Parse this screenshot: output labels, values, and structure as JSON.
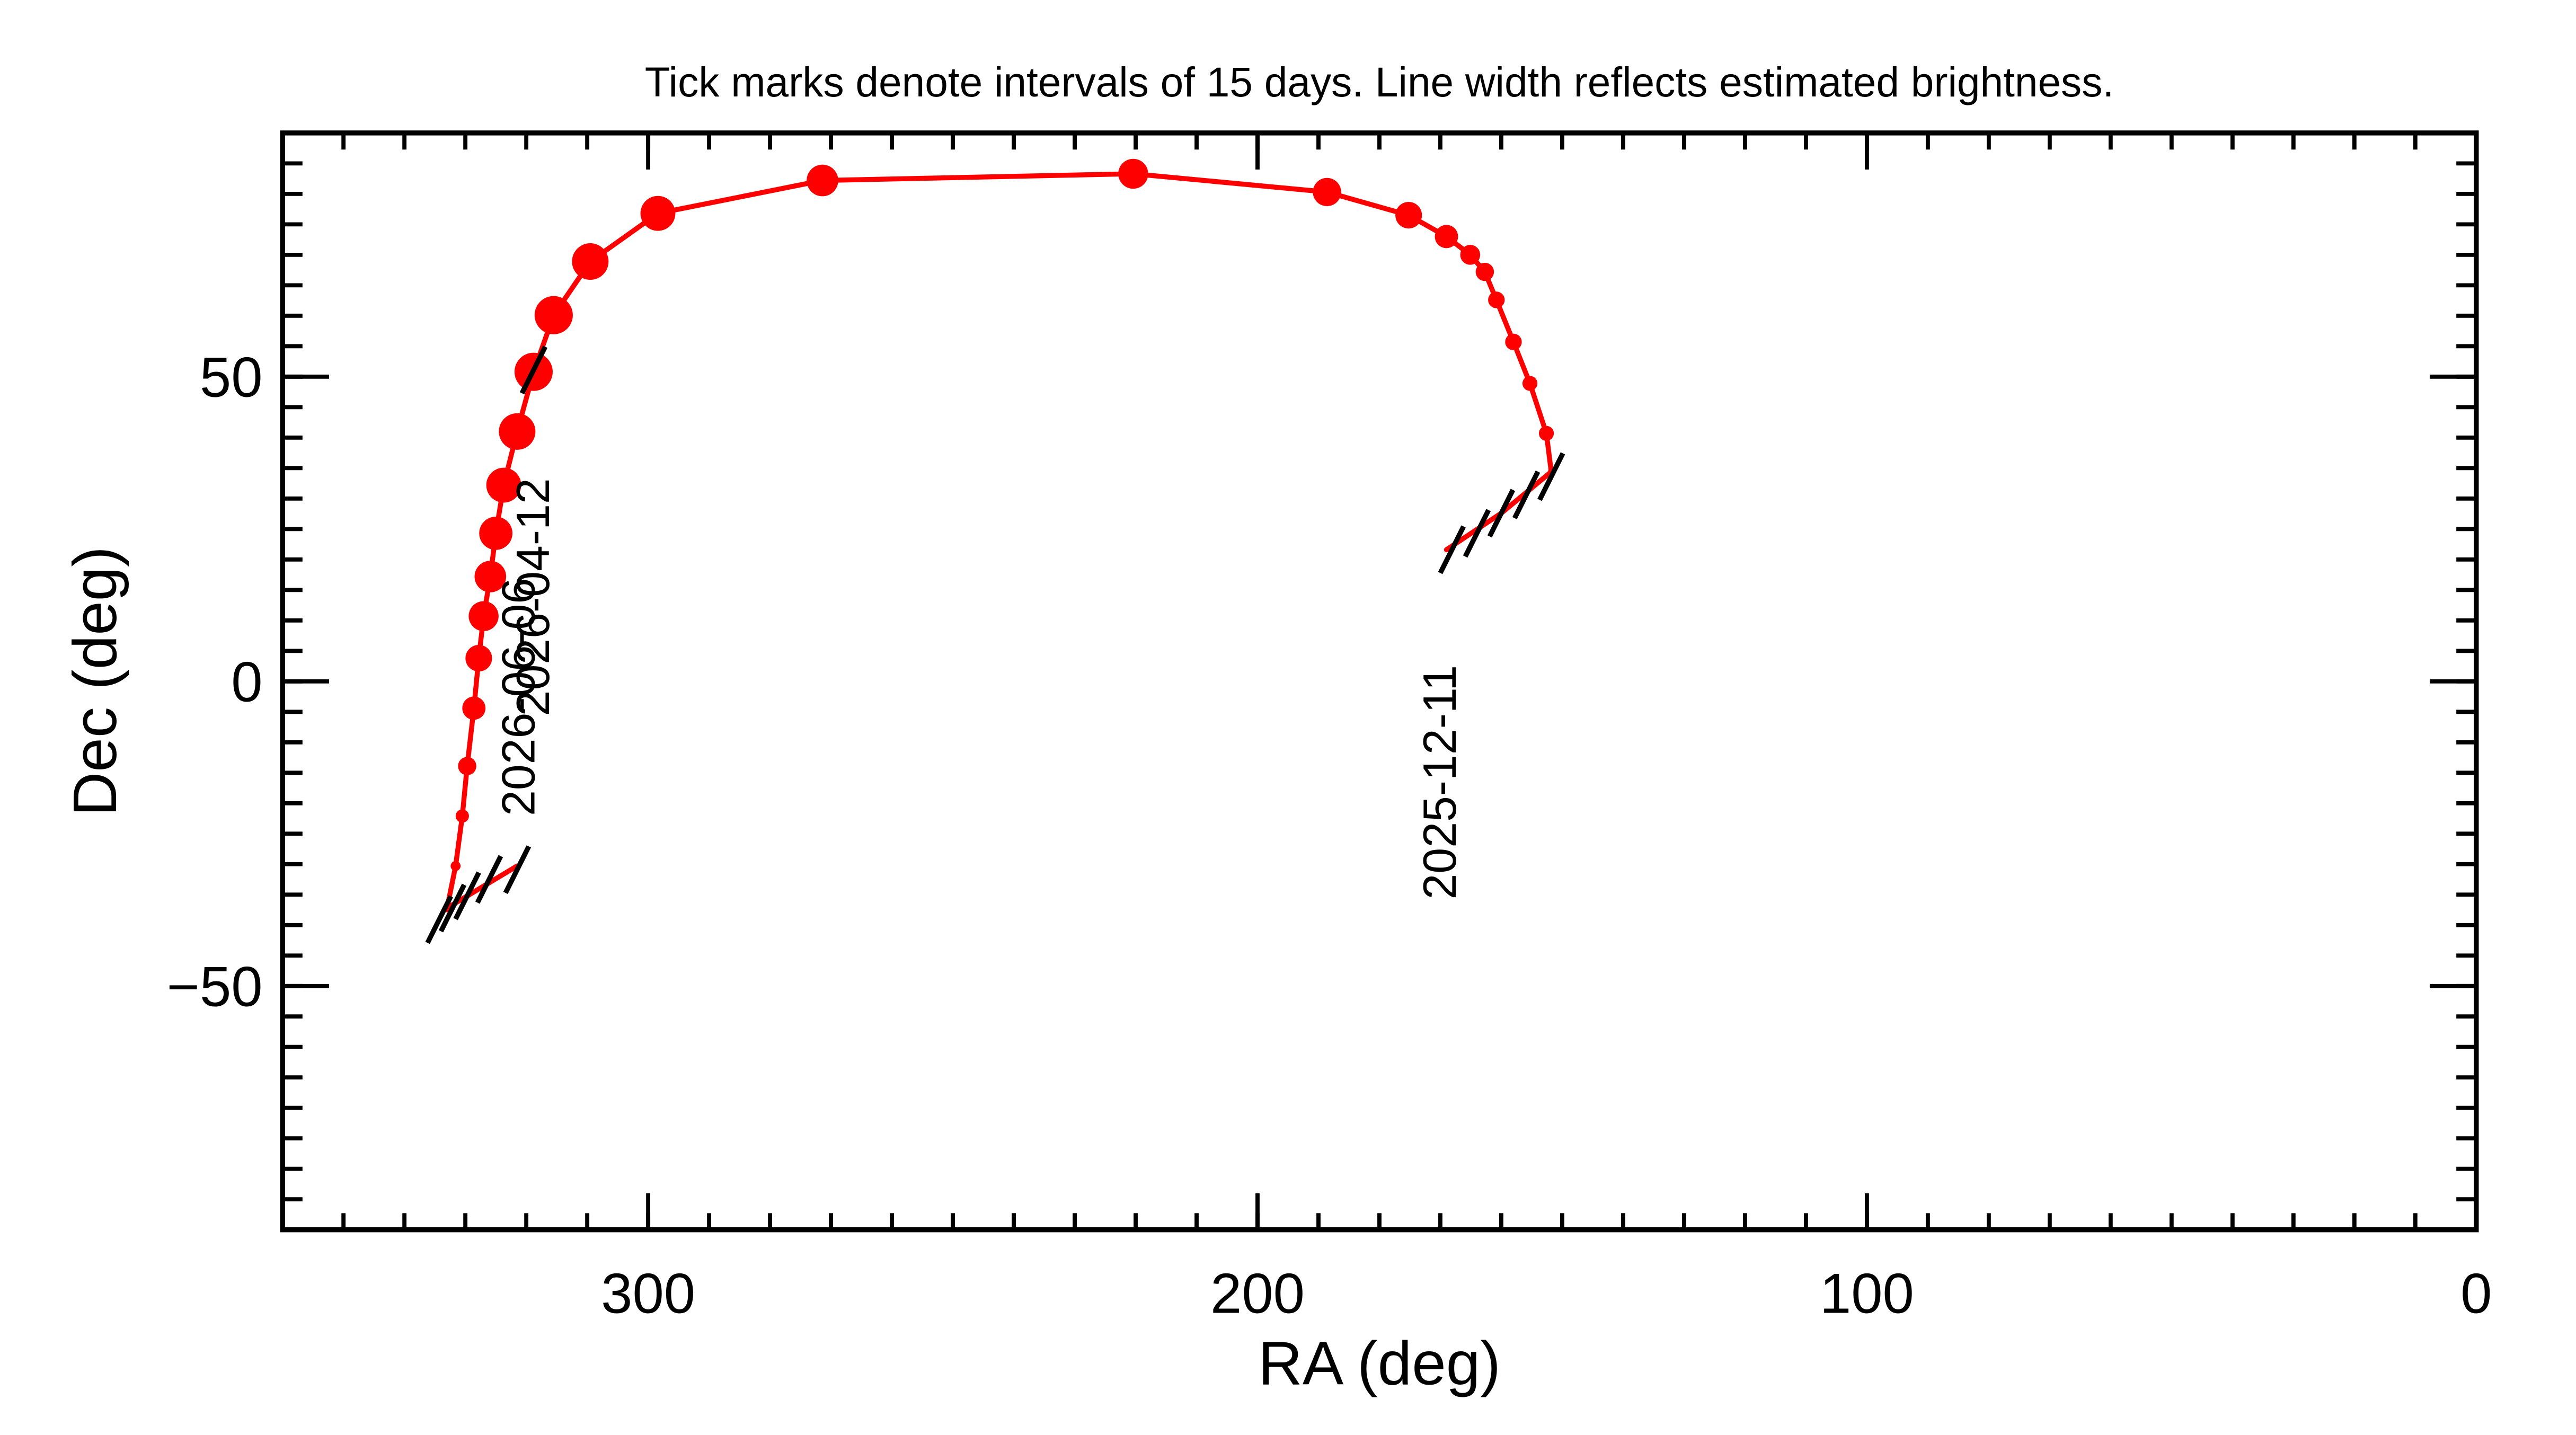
{
  "chart_data": {
    "type": "scatter",
    "title": "Tick marks denote intervals of 15 days.  Line width reflects estimated brightness.",
    "x_label": "RA (deg)",
    "y_label": "Dec (deg)",
    "xlim": [
      360,
      0
    ],
    "ylim": [
      -90,
      90
    ],
    "xticks": [
      300,
      200,
      100,
      0
    ],
    "yticks": [
      {
        "value": -50,
        "label": "−50"
      },
      0,
      50
    ],
    "color": "#ff0000",
    "x": [
      169,
      160,
      151.8,
      152.6,
      155.3,
      158,
      160.8,
      162.7,
      165.1,
      169,
      175.2,
      188.6,
      220.4,
      271.4,
      298.4,
      309.5,
      315.5,
      318.8,
      321.5,
      323.7,
      325,
      325.9,
      327,
      327.8,
      328.6,
      329.7,
      330.5,
      331.6,
      333,
      321.5
    ],
    "y": [
      21.6,
      27.6,
      34.4,
      40.7,
      48.9,
      55.7,
      62.6,
      67.2,
      70,
      73,
      76.5,
      80.3,
      83.3,
      82.2,
      76.8,
      68.9,
      60.1,
      50.8,
      41,
      32.2,
      24.3,
      17.2,
      10.7,
      3.8,
      -4.4,
      -13.9,
      -22.1,
      -30.3,
      -37.2,
      -30.3
    ],
    "sizes": [
      3,
      3,
      4,
      9,
      9,
      10,
      10,
      11,
      12,
      14,
      16,
      17,
      18,
      19,
      21,
      22,
      23,
      23,
      22,
      21,
      20,
      19,
      18,
      16,
      14,
      11,
      8,
      6,
      5,
      3
    ],
    "tick_marks": {
      "color": "#000000",
      "x": [
        168.1,
        164,
        160,
        155.9,
        151.8,
        334.3,
        332.1,
        329.7,
        326.1,
        321.5,
        318.8
      ],
      "y": [
        21.6,
        24.3,
        27.6,
        30.6,
        33.6,
        -39.1,
        -37.2,
        -35.2,
        -32.5,
        -30.9,
        51.1
      ]
    },
    "annotations": [
      {
        "text": "2025-12-11",
        "x": 169.5,
        "y": -35.8
      },
      {
        "text": "2026-04-12",
        "x": 318.3,
        "y": -5.7
      },
      {
        "text": "2026-06-06",
        "x": 320.7,
        "y": -22.1
      }
    ]
  }
}
